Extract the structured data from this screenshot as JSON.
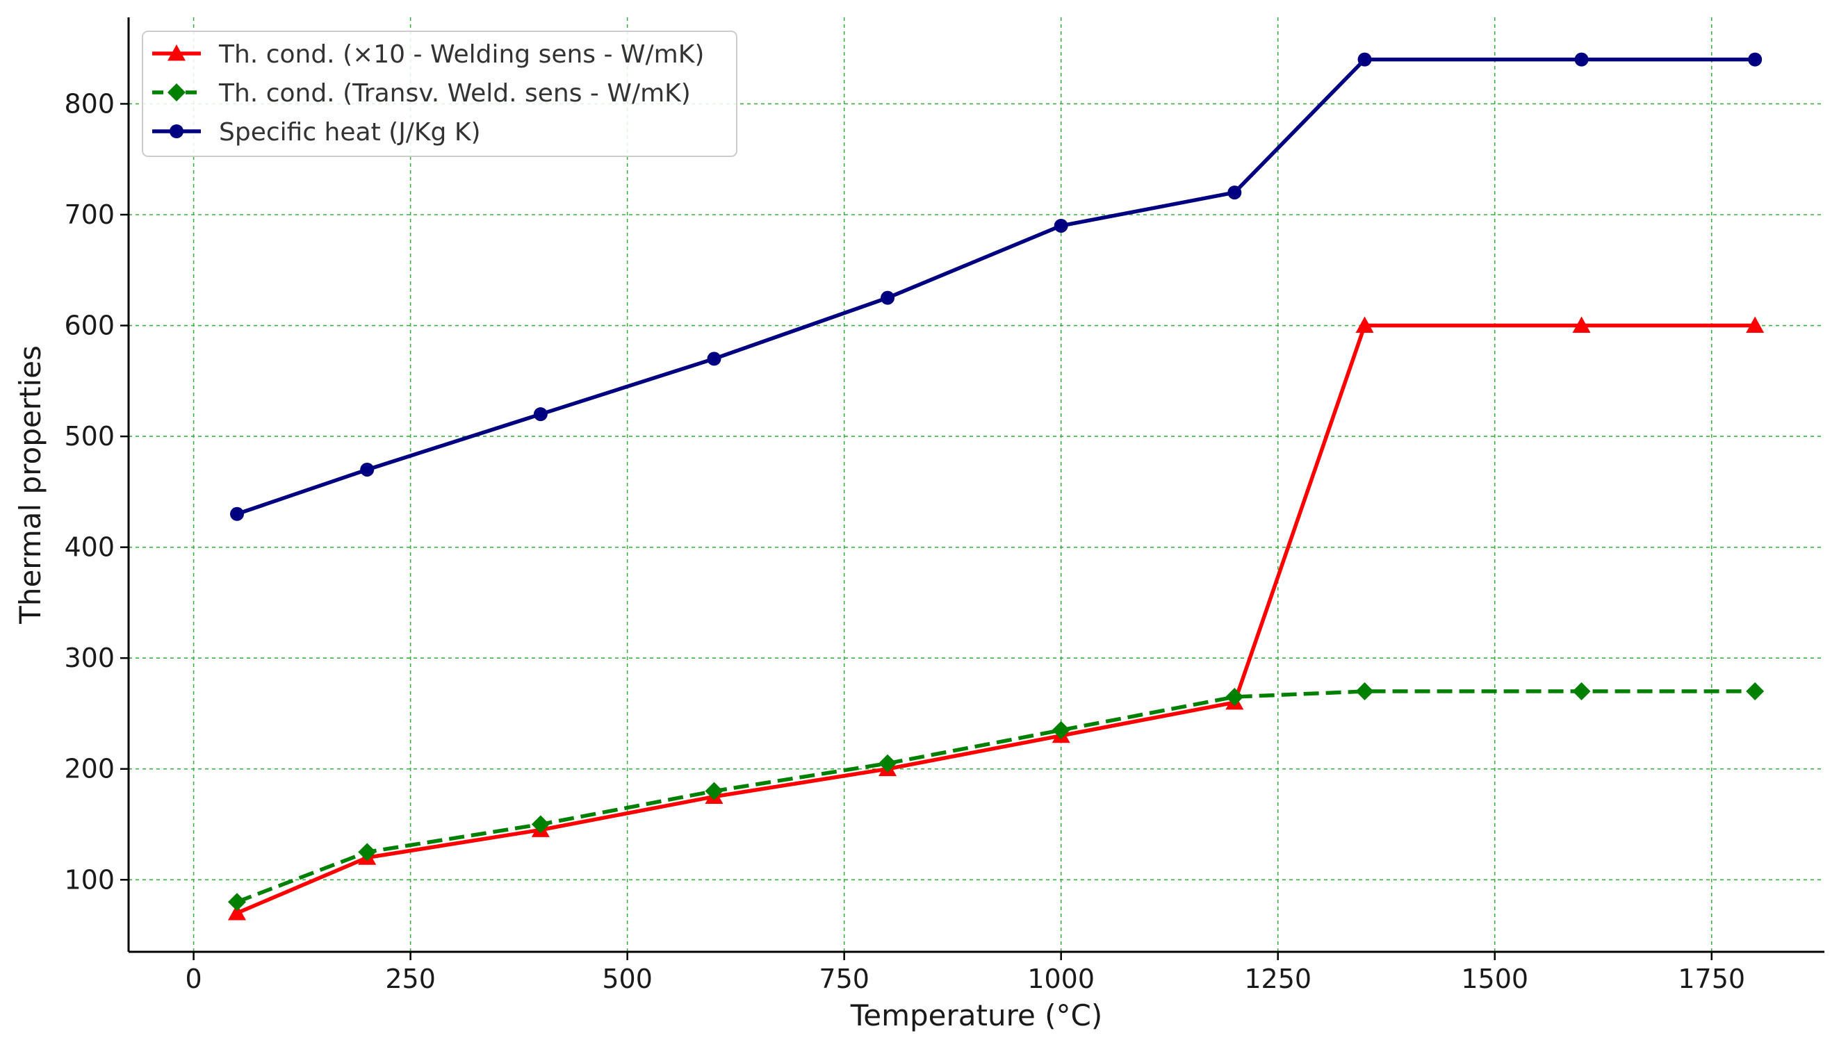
{
  "chart_data": {
    "type": "line",
    "title": "",
    "xlabel": "Temperature (°C)",
    "ylabel": "Thermal properties",
    "xlim": [
      -75,
      1880
    ],
    "ylim": [
      35,
      878
    ],
    "xticks": [
      0,
      250,
      500,
      750,
      1000,
      1250,
      1500,
      1750
    ],
    "yticks": [
      100,
      200,
      300,
      400,
      500,
      600,
      700,
      800
    ],
    "grid": true,
    "grid_color": "#3cb043",
    "legend_position": "top-left",
    "x": [
      50,
      200,
      400,
      600,
      800,
      1000,
      1200,
      1350,
      1600,
      1800
    ],
    "series": [
      {
        "name": "Th. cond. (×10 - Welding sens - W/mK)",
        "values": [
          70,
          120,
          145,
          175,
          200,
          230,
          260,
          600,
          600,
          600
        ],
        "color": "#ff0000",
        "marker": "triangle",
        "line_style": "solid"
      },
      {
        "name": "Th. cond. (Transv. Weld. sens - W/mK)",
        "values": [
          80,
          125,
          150,
          180,
          205,
          235,
          265,
          270,
          270,
          270
        ],
        "color": "#008000",
        "marker": "diamond",
        "line_style": "dashed"
      },
      {
        "name": "Specific heat (J/Kg K)",
        "values": [
          430,
          470,
          520,
          570,
          625,
          690,
          720,
          840,
          840,
          840
        ],
        "color": "#000080",
        "marker": "circle",
        "line_style": "solid"
      }
    ]
  }
}
